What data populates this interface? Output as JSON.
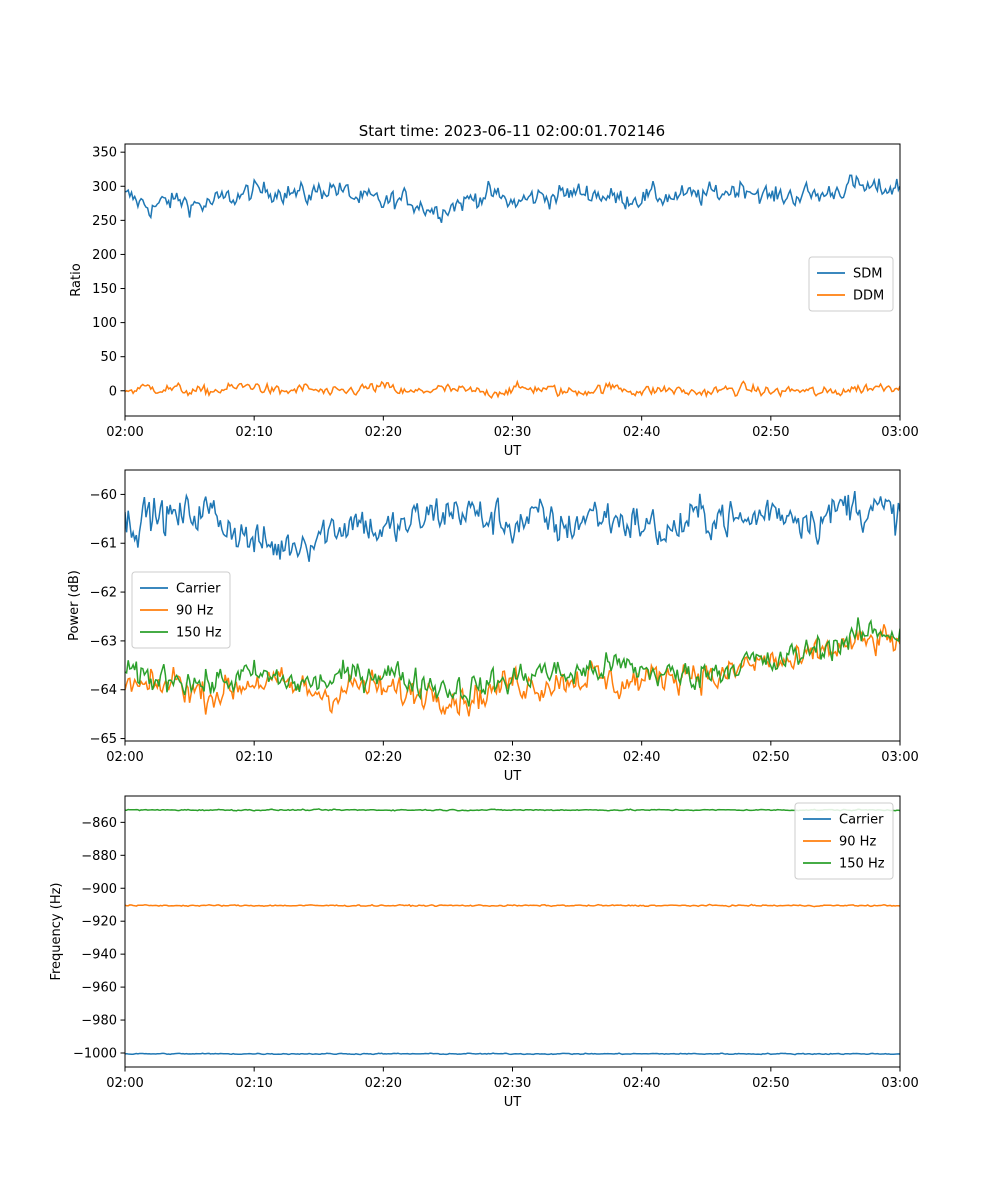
{
  "figure": {
    "title": "Start time: 2023-06-11 02:00:01.702146"
  },
  "colors": {
    "c0": "#1f77b4",
    "c1": "#ff7f0e",
    "c2": "#2ca02c"
  },
  "chart_data": [
    {
      "type": "line",
      "ylabel": "Ratio",
      "xlabel": "UT",
      "xticks": [
        "02:00",
        "02:10",
        "02:20",
        "02:30",
        "02:40",
        "02:50",
        "03:00"
      ],
      "xlim": [
        0,
        60
      ],
      "ylim": [
        -37,
        362
      ],
      "yticks": [
        0,
        50,
        100,
        150,
        200,
        250,
        300,
        350
      ],
      "legend": {
        "placement": "center-right",
        "entries": [
          "SDM",
          "DDM"
        ]
      },
      "series": [
        {
          "name": "SDM",
          "color": "#1f77b4",
          "x": [
            0,
            2,
            4,
            6,
            8,
            10,
            12,
            14,
            16,
            18,
            20,
            22,
            24,
            26,
            28,
            30,
            32,
            34,
            36,
            38,
            40,
            42,
            44,
            46,
            48,
            50,
            52,
            54,
            56,
            58,
            60
          ],
          "y": [
            285,
            270,
            280,
            272,
            282,
            292,
            295,
            286,
            300,
            282,
            276,
            280,
            265,
            276,
            290,
            275,
            285,
            288,
            292,
            282,
            285,
            285,
            285,
            290,
            300,
            283,
            288,
            287,
            302,
            295,
            300
          ]
        },
        {
          "name": "DDM",
          "color": "#ff7f0e",
          "x": [
            0,
            2,
            4,
            6,
            8,
            10,
            12,
            14,
            16,
            18,
            20,
            22,
            24,
            26,
            28,
            30,
            32,
            34,
            36,
            38,
            40,
            42,
            44,
            46,
            48,
            50,
            52,
            54,
            56,
            58,
            60
          ],
          "y": [
            0,
            5,
            2,
            -2,
            3,
            8,
            -3,
            4,
            -5,
            2,
            6,
            -4,
            3,
            0,
            -3,
            2,
            4,
            -2,
            1,
            5,
            -1,
            2,
            -3,
            0,
            3,
            -2,
            1,
            -4,
            2,
            5,
            8
          ]
        }
      ]
    },
    {
      "type": "line",
      "ylabel": "Power (dB)",
      "xlabel": "UT",
      "xticks": [
        "02:00",
        "02:10",
        "02:20",
        "02:30",
        "02:40",
        "02:50",
        "03:00"
      ],
      "xlim": [
        0,
        60
      ],
      "ylim": [
        -65.05,
        -59.5
      ],
      "yticks": [
        -65,
        -64,
        -63,
        -62,
        -61,
        -60
      ],
      "legend": {
        "placement": "center-left",
        "entries": [
          "Carrier",
          "90 Hz",
          "150 Hz"
        ]
      },
      "series": [
        {
          "name": "Carrier",
          "color": "#1f77b4",
          "x": [
            0,
            2,
            4,
            6,
            8,
            10,
            12,
            14,
            16,
            18,
            20,
            22,
            24,
            26,
            28,
            30,
            32,
            34,
            36,
            38,
            40,
            42,
            44,
            46,
            48,
            50,
            52,
            54,
            56,
            58,
            60
          ],
          "y": [
            -60.6,
            -60.4,
            -60.5,
            -60.3,
            -60.6,
            -61.0,
            -61.1,
            -60.9,
            -60.7,
            -60.5,
            -60.8,
            -60.6,
            -60.4,
            -60.3,
            -60.5,
            -60.6,
            -60.5,
            -60.7,
            -60.4,
            -60.5,
            -60.6,
            -60.8,
            -60.5,
            -60.4,
            -60.6,
            -60.3,
            -60.4,
            -60.5,
            -60.2,
            -60.3,
            -60.5
          ]
        },
        {
          "name": "90 Hz",
          "color": "#ff7f0e",
          "x": [
            0,
            2,
            4,
            6,
            8,
            10,
            12,
            14,
            16,
            18,
            20,
            22,
            24,
            26,
            28,
            30,
            32,
            34,
            36,
            38,
            40,
            42,
            44,
            46,
            48,
            50,
            52,
            54,
            56,
            58,
            60
          ],
          "y": [
            -63.9,
            -64.0,
            -63.8,
            -64.1,
            -64.0,
            -63.8,
            -63.9,
            -64.0,
            -64.1,
            -63.9,
            -64.0,
            -64.1,
            -64.0,
            -64.2,
            -64.1,
            -63.8,
            -63.9,
            -63.8,
            -63.7,
            -63.9,
            -63.8,
            -63.7,
            -63.6,
            -63.8,
            -63.5,
            -63.4,
            -63.5,
            -63.2,
            -63.1,
            -63.0,
            -63.0
          ]
        },
        {
          "name": "150 Hz",
          "color": "#2ca02c",
          "x": [
            0,
            2,
            4,
            6,
            8,
            10,
            12,
            14,
            16,
            18,
            20,
            22,
            24,
            26,
            28,
            30,
            32,
            34,
            36,
            38,
            40,
            42,
            44,
            46,
            48,
            50,
            52,
            54,
            56,
            58,
            60
          ],
          "y": [
            -63.7,
            -63.8,
            -63.7,
            -63.9,
            -63.8,
            -63.7,
            -63.8,
            -63.9,
            -63.8,
            -63.7,
            -63.6,
            -63.8,
            -63.9,
            -64.0,
            -63.9,
            -63.8,
            -63.6,
            -63.7,
            -63.6,
            -63.5,
            -63.6,
            -63.7,
            -63.7,
            -63.6,
            -63.4,
            -63.5,
            -63.3,
            -63.1,
            -63.0,
            -62.8,
            -62.8
          ]
        }
      ]
    },
    {
      "type": "line",
      "ylabel": "Frequency (Hz)",
      "xlabel": "UT",
      "xticks": [
        "02:00",
        "02:10",
        "02:20",
        "02:30",
        "02:40",
        "02:50",
        "03:00"
      ],
      "xlim": [
        0,
        60
      ],
      "ylim": [
        -1008.5,
        -844
      ],
      "yticks": [
        -1000,
        -980,
        -960,
        -940,
        -920,
        -900,
        -880,
        -860
      ],
      "legend": {
        "placement": "upper-right",
        "entries": [
          "Carrier",
          "90 Hz",
          "150 Hz"
        ]
      },
      "series": [
        {
          "name": "Carrier",
          "color": "#1f77b4",
          "x": [
            0,
            10,
            20,
            30,
            40,
            50,
            60
          ],
          "y": [
            -1000.5,
            -1000.5,
            -1000.5,
            -1000.5,
            -1000.5,
            -1000.5,
            -1000.5
          ]
        },
        {
          "name": "90 Hz",
          "color": "#ff7f0e",
          "x": [
            0,
            10,
            20,
            30,
            40,
            50,
            60
          ],
          "y": [
            -910.5,
            -910.5,
            -910.5,
            -910.5,
            -910.5,
            -910.5,
            -910.5
          ]
        },
        {
          "name": "150 Hz",
          "color": "#2ca02c",
          "x": [
            0,
            10,
            20,
            30,
            40,
            50,
            60
          ],
          "y": [
            -852.5,
            -852.5,
            -852.5,
            -852.5,
            -852.5,
            -852.5,
            -852.5
          ]
        }
      ]
    }
  ]
}
